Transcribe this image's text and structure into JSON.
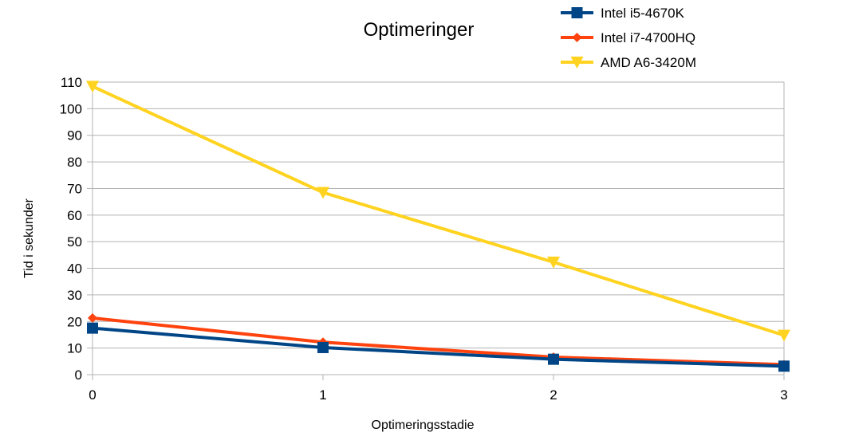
{
  "chart_data": {
    "type": "line",
    "title": "Optimeringer",
    "xlabel": "Optimeringsstadie",
    "ylabel": "Tid i sekunder",
    "x": [
      0,
      1,
      2,
      3
    ],
    "xlim": [
      0,
      3
    ],
    "ylim": [
      0,
      110
    ],
    "y_ticks": [
      0,
      10,
      20,
      30,
      40,
      50,
      60,
      70,
      80,
      90,
      100,
      110
    ],
    "grid": true,
    "legend_position": "top-right",
    "series": [
      {
        "name": "Intel i5-4670K",
        "color": "#004586",
        "marker": "square",
        "values": [
          17.5,
          10.2,
          5.8,
          3.2
        ]
      },
      {
        "name": "Intel i7-4700HQ",
        "color": "#ff420e",
        "marker": "diamond",
        "values": [
          21.3,
          12.2,
          6.6,
          3.8
        ]
      },
      {
        "name": "AMD A6-3420M",
        "color": "#ffd320",
        "marker": "triangle-down",
        "values": [
          108.4,
          68.5,
          42.3,
          14.8
        ]
      }
    ]
  }
}
